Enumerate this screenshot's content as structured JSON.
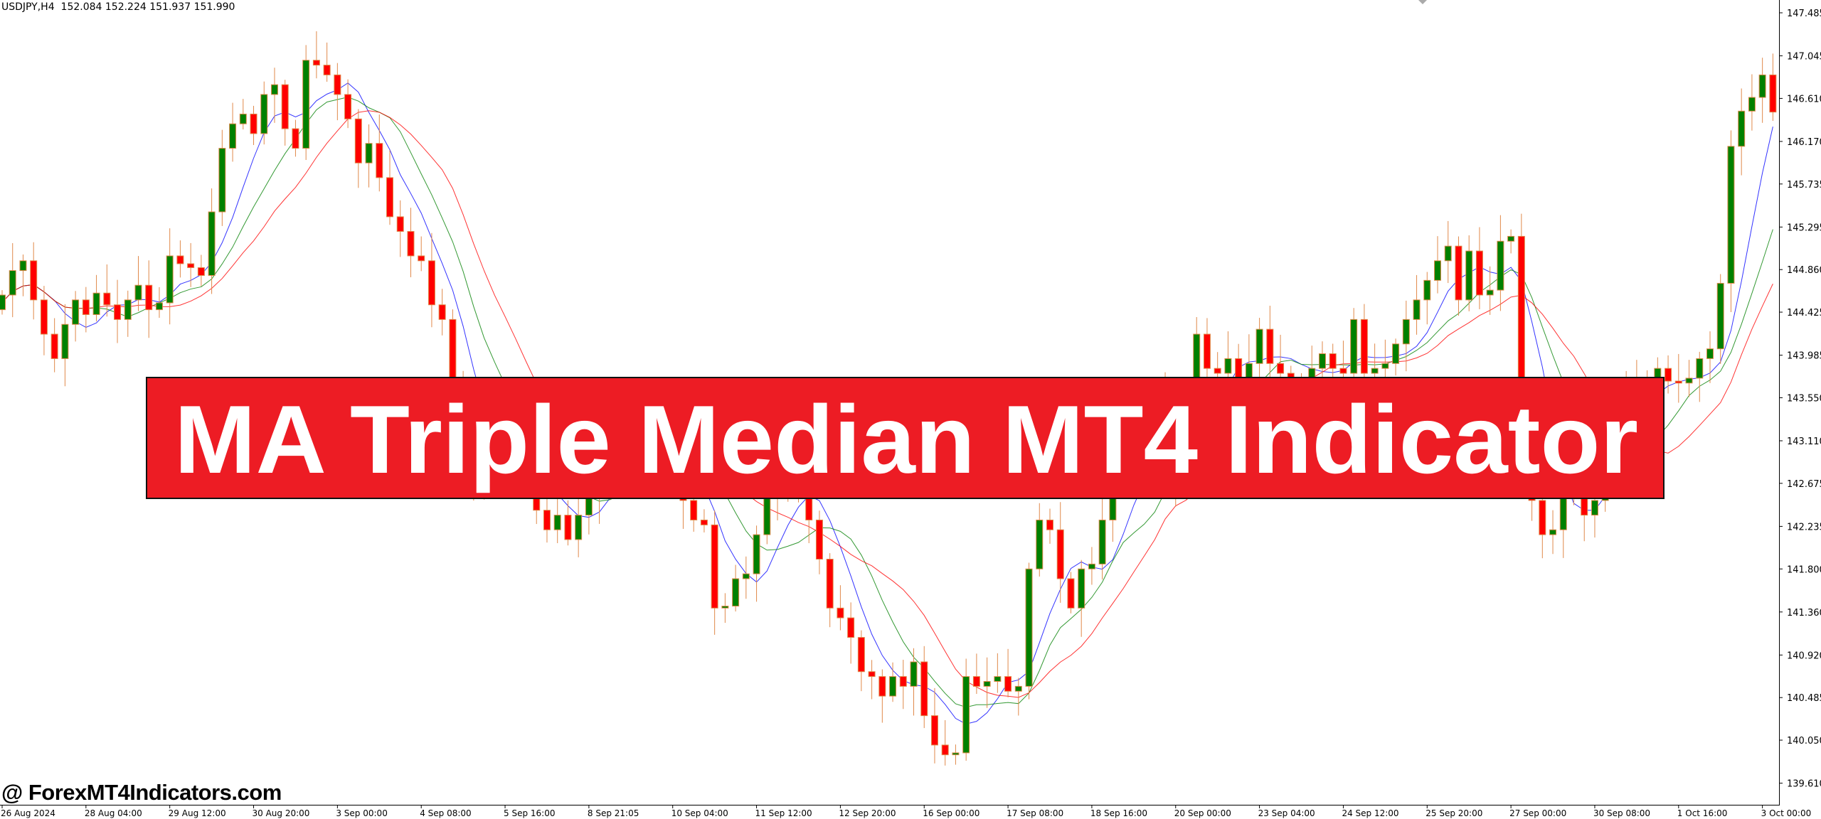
{
  "header": {
    "symbol": "USDJPY,H4",
    "ohlc": "152.084 152.224 151.937 151.990"
  },
  "banner": {
    "title": "MA Triple Median MT4 Indicator",
    "color": "#ED1C24"
  },
  "watermark": "@ ForexMT4Indicators.com",
  "chart_data": {
    "type": "candlestick",
    "symbol": "USDJPY",
    "timeframe": "H4",
    "ylim": [
      139.45,
      147.62
    ],
    "y_ticks": [
      "147.485",
      "147.045",
      "146.610",
      "146.170",
      "145.735",
      "145.295",
      "144.860",
      "144.425",
      "143.985",
      "143.550",
      "143.110",
      "142.675",
      "142.235",
      "141.800",
      "141.360",
      "140.920",
      "140.485",
      "140.050",
      "139.610"
    ],
    "x_ticks": [
      "26 Aug 2024",
      "28 Aug 04:00",
      "29 Aug 12:00",
      "30 Aug 20:00",
      "3 Sep 00:00",
      "4 Sep 08:00",
      "5 Sep 16:00",
      "8 Sep 21:05",
      "10 Sep 04:00",
      "11 Sep 12:00",
      "12 Sep 20:00",
      "16 Sep 00:00",
      "17 Sep 08:00",
      "18 Sep 16:00",
      "20 Sep 00:00",
      "23 Sep 04:00",
      "24 Sep 12:00",
      "25 Sep 20:00",
      "27 Sep 00:00",
      "30 Sep 08:00",
      "1 Oct 16:00",
      "3 Oct 00:00"
    ],
    "bars_per_tick": 8,
    "colors": {
      "bull": "#008000",
      "bear": "#FF0000",
      "wick": "#E0894A",
      "ma_fast": "#0000FF",
      "ma_mid": "#008000",
      "ma_slow": "#FF0000"
    },
    "first_open": 144.45,
    "closes": [
      144.6,
      144.85,
      144.95,
      144.55,
      144.2,
      143.95,
      144.3,
      144.55,
      144.4,
      144.62,
      144.5,
      144.35,
      144.55,
      144.7,
      144.45,
      144.52,
      145.0,
      144.92,
      144.88,
      144.8,
      145.45,
      146.1,
      146.35,
      146.45,
      146.25,
      146.65,
      146.75,
      146.3,
      146.1,
      147.0,
      146.95,
      146.85,
      146.65,
      146.4,
      145.95,
      146.15,
      145.8,
      145.4,
      145.25,
      145.0,
      144.95,
      144.5,
      144.35,
      143.6,
      142.9,
      142.75,
      143.0,
      143.2,
      143.0,
      142.9,
      142.7,
      142.4,
      142.2,
      142.35,
      142.1,
      142.35,
      142.55,
      142.9,
      143.2,
      143.3,
      143.5,
      143.4,
      143.2,
      143.0,
      142.8,
      142.5,
      142.3,
      142.25,
      141.4,
      141.42,
      141.7,
      141.75,
      142.15,
      142.55,
      142.8,
      142.7,
      142.6,
      142.3,
      141.9,
      141.4,
      141.3,
      141.1,
      140.75,
      140.7,
      140.5,
      140.7,
      140.6,
      140.85,
      140.3,
      140.0,
      139.9,
      139.92,
      140.7,
      140.6,
      140.65,
      140.7,
      140.55,
      140.6,
      141.8,
      142.3,
      142.2,
      141.7,
      141.4,
      141.8,
      141.85,
      142.3,
      142.7,
      142.9,
      143.1,
      142.95,
      143.3,
      143.6,
      142.7,
      143.2,
      144.2,
      143.85,
      143.8,
      143.95,
      143.7,
      143.9,
      144.25,
      143.9,
      143.8,
      143.75,
      143.7,
      143.85,
      144.0,
      143.85,
      143.8,
      144.35,
      143.8,
      143.85,
      143.9,
      144.1,
      144.35,
      144.55,
      144.75,
      144.95,
      145.1,
      144.55,
      145.05,
      144.6,
      144.65,
      145.15,
      145.2,
      143.0,
      142.5,
      142.15,
      142.2,
      142.6,
      142.7,
      142.35,
      142.5,
      143.2,
      143.55,
      143.5,
      143.65,
      143.6,
      143.85,
      143.72,
      143.7,
      143.75,
      143.95,
      144.05,
      144.72,
      146.12,
      146.48,
      146.62,
      146.85,
      146.47
    ]
  }
}
